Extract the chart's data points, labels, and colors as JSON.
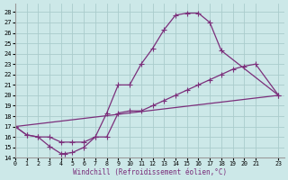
{
  "xlabel": "Windchill (Refroidissement éolien,°C)",
  "bg_color": "#cce8e8",
  "line_color": "#7b2f7b",
  "grid_color": "#aacccc",
  "xlim": [
    0,
    23.5
  ],
  "ylim": [
    14,
    28.8
  ],
  "xticks": [
    0,
    1,
    2,
    3,
    4,
    5,
    6,
    7,
    8,
    9,
    10,
    11,
    12,
    13,
    14,
    15,
    16,
    17,
    18,
    19,
    20,
    21,
    23
  ],
  "yticks": [
    14,
    15,
    16,
    17,
    18,
    19,
    20,
    21,
    22,
    23,
    24,
    25,
    26,
    27,
    28
  ],
  "line1_x": [
    0,
    1,
    2,
    3,
    4,
    4.3,
    5,
    6,
    7,
    8,
    9,
    10,
    11,
    12,
    13,
    14,
    15,
    16,
    17,
    18,
    23
  ],
  "line1_y": [
    17,
    16.2,
    16.0,
    15.1,
    14.4,
    14.4,
    14.5,
    15.0,
    16.0,
    18.3,
    21.0,
    21.0,
    23.0,
    24.5,
    26.3,
    27.7,
    27.9,
    27.9,
    27.0,
    24.3,
    20.0
  ],
  "line2_x": [
    0,
    1,
    2,
    3,
    4,
    5,
    6,
    7,
    8,
    9,
    10,
    11,
    12,
    13,
    14,
    15,
    16,
    17,
    18,
    19,
    20,
    21,
    23
  ],
  "line2_y": [
    17.0,
    16.2,
    16.0,
    16.0,
    15.5,
    15.5,
    15.5,
    16.0,
    16.0,
    18.3,
    18.5,
    18.5,
    19.0,
    19.5,
    20.0,
    20.5,
    21.0,
    21.5,
    22.0,
    22.5,
    22.8,
    23.0,
    20.0
  ],
  "line3_x": [
    0,
    23
  ],
  "line3_y": [
    17.0,
    20.0
  ]
}
